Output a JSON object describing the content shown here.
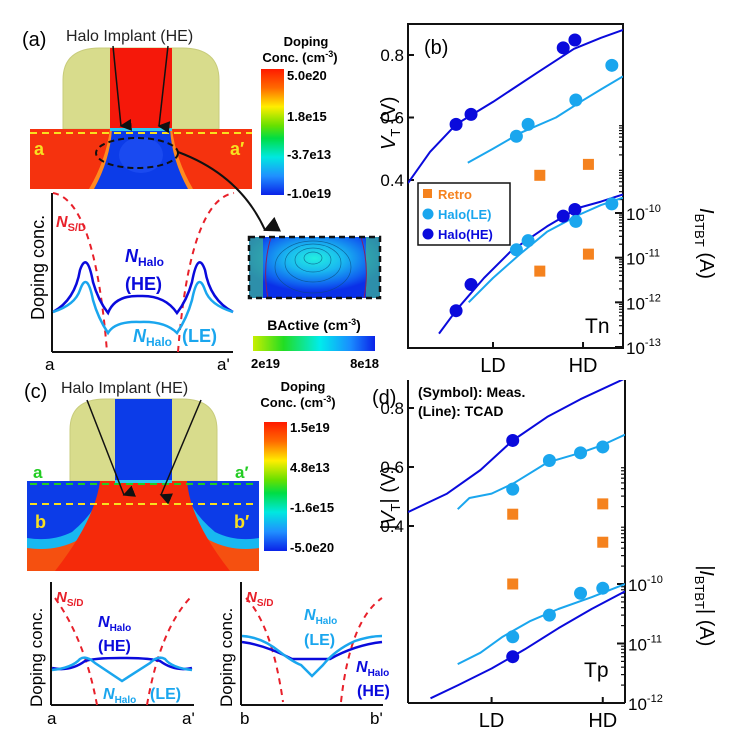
{
  "colors": {
    "he": "#0a0adc",
    "le": "#1aa6ee",
    "retro": "#f5821e",
    "sd": "#e8202a",
    "spacer": "#d8dc8c",
    "ntype_red": "#f52a10",
    "ptype_blue": "#0c3ce8",
    "cut_yellow": "#f8e020",
    "cut_green": "#22cc22"
  },
  "panel_a": {
    "tag": "(a)",
    "implant_label": "Halo Implant (HE)",
    "cut_left": "a",
    "cut_right": "a′",
    "colorbar": {
      "title_line1": "Doping",
      "title_line2": "Conc. (cm",
      "title_sup": "-3",
      "title_end": ")",
      "ticks": [
        "5.0e20",
        "1.8e15",
        "-3.7e13",
        "-1.0e19"
      ]
    },
    "inset_colorbar": {
      "title": "BActive (cm",
      "title_sup": "-3",
      "title_end": ")",
      "left": "2e19",
      "right": "8e18"
    },
    "profile": {
      "ylabel": "Doping conc.",
      "xleft": "a",
      "xright": "a'",
      "nsd": "N",
      "nsd_sub": "S/D",
      "he_label": "N",
      "he_sub": "Halo",
      "he_tag": "(HE)",
      "le_label": "N",
      "le_sub": "Halo",
      "le_tag": "(LE)"
    }
  },
  "panel_c": {
    "tag": "(c)",
    "implant_label": "Halo Implant (HE)",
    "cut_a_left": "a",
    "cut_a_right": "a′",
    "cut_b_left": "b",
    "cut_b_right": "b′",
    "colorbar": {
      "title_line1": "Doping",
      "title_line2": "Conc. (cm",
      "title_sup": "-3",
      "title_end": ")",
      "ticks": [
        "1.5e19",
        "4.8e13",
        "-1.6e15",
        "-5.0e20"
      ]
    },
    "profile_a": {
      "ylabel": "Doping conc.",
      "xleft": "a",
      "xright": "a'",
      "nsd": "N",
      "nsd_sub": "S/D",
      "he_label": "N",
      "he_sub": "Halo",
      "he_tag": "(HE)",
      "le_label": "N",
      "le_sub": "Halo",
      "le_tag": "(LE)"
    },
    "profile_b": {
      "ylabel": "Doping conc.",
      "xleft": "b",
      "xright": "b'",
      "nsd": "N",
      "nsd_sub": "S/D",
      "he_label": "N",
      "he_sub": "Halo",
      "he_tag": "(HE)",
      "le_label": "N",
      "le_sub": "Halo",
      "le_tag": "(LE)"
    }
  },
  "chart_data": [
    {
      "id": "b",
      "type": "scatter",
      "title": "(b)",
      "annotation": "Tn",
      "xlabel": "",
      "x_ticks": [
        {
          "label": "LD",
          "value": 1
        },
        {
          "label": "HD",
          "value": 2
        }
      ],
      "xlim": [
        0.056,
        2.444
      ],
      "ylabel_left": "V_T (V)",
      "ylabel_left_main": "V",
      "ylabel_left_sub": "T",
      "ylabel_left_unit": " (V)",
      "ylim_left": [
        0.3,
        0.9
      ],
      "yticks_left": [
        0.4,
        0.6,
        0.8
      ],
      "ylabel_right_main": "I",
      "ylabel_right_sub": "BTBT",
      "ylabel_right_unit": " (A)",
      "ylim_right_log": [
        -13,
        -9.2
      ],
      "yticks_right": [
        {
          "exp": -10
        },
        {
          "exp": -11
        },
        {
          "exp": -12
        },
        {
          "exp": -13
        }
      ],
      "legend": {
        "position": "middle-left",
        "entries": [
          {
            "name": "Retro",
            "marker": "square",
            "color_key": "retro"
          },
          {
            "name": "Halo(LE)",
            "marker": "circle",
            "color_key": "le"
          },
          {
            "name": "Halo(HE)",
            "marker": "circle",
            "color_key": "he"
          }
        ]
      },
      "vt_points": {
        "Halo(HE)": [
          [
            0.59,
            0.578
          ],
          [
            0.756,
            0.61
          ],
          [
            1.78,
            0.823
          ],
          [
            1.91,
            0.848
          ]
        ],
        "Halo(LE)": [
          [
            1.26,
            0.54
          ],
          [
            1.39,
            0.578
          ],
          [
            1.92,
            0.656
          ],
          [
            2.32,
            0.767
          ]
        ],
        "Retro": [
          [
            1.52,
            0.415
          ],
          [
            2.06,
            0.45
          ]
        ]
      },
      "vt_lines": {
        "Halo(HE)": [
          [
            0.056,
            0.39
          ],
          [
            0.3,
            0.49
          ],
          [
            0.59,
            0.578
          ],
          [
            1.0,
            0.65
          ],
          [
            1.5,
            0.745
          ],
          [
            1.9,
            0.82
          ],
          [
            2.2,
            0.855
          ],
          [
            2.444,
            0.88
          ]
        ],
        "Halo(LE)": [
          [
            0.72,
            0.455
          ],
          [
            1.0,
            0.5
          ],
          [
            1.3,
            0.55
          ],
          [
            1.7,
            0.6
          ],
          [
            2.0,
            0.655
          ],
          [
            2.2,
            0.69
          ],
          [
            2.444,
            0.732
          ]
        ]
      },
      "ibtbt_points": {
        "Halo(HE)": [
          [
            0.59,
            6.5e-13
          ],
          [
            0.756,
            2.5e-12
          ],
          [
            1.78,
            8.5e-11
          ],
          [
            1.91,
            1.2e-10
          ]
        ],
        "Halo(LE)": [
          [
            1.26,
            1.5e-11
          ],
          [
            1.39,
            2.4e-11
          ],
          [
            1.92,
            6.5e-11
          ],
          [
            2.32,
            1.6e-10
          ]
        ],
        "Retro": [
          [
            1.52,
            5e-12
          ],
          [
            2.06,
            1.2e-11
          ]
        ]
      },
      "ibtbt_lines": {
        "Halo(HE)": [
          [
            0.4,
            2e-13
          ],
          [
            0.6,
            7e-13
          ],
          [
            0.9,
            3.5e-12
          ],
          [
            1.2,
            1.4e-11
          ],
          [
            1.6,
            5e-11
          ],
          [
            1.95,
            1.3e-10
          ],
          [
            2.2,
            1.8e-10
          ],
          [
            2.444,
            2.6e-10
          ]
        ],
        "Halo(LE)": [
          [
            0.73,
            1e-12
          ],
          [
            1.0,
            3.5e-12
          ],
          [
            1.3,
            1.2e-11
          ],
          [
            1.6,
            3.8e-11
          ],
          [
            1.95,
            9e-11
          ],
          [
            2.2,
            1.5e-10
          ],
          [
            2.444,
            2.2e-10
          ]
        ]
      }
    },
    {
      "id": "d",
      "type": "scatter",
      "title": "(d)",
      "annotation": "Tp",
      "note_line1": "(Symbol): Meas.",
      "note_line2": "(Line): TCAD",
      "x_ticks": [
        {
          "label": "LD",
          "value": 1
        },
        {
          "label": "HD",
          "value": 2
        }
      ],
      "xlim": [
        0.248,
        2.2
      ],
      "ylabel_left_main": "|V",
      "ylabel_left_sub": "T",
      "ylabel_left_unit": "| (V)",
      "ylim_left": [
        0.15,
        0.9
      ],
      "yticks_left": [
        0.4,
        0.6,
        0.8
      ],
      "ylabel_right_main": "|I",
      "ylabel_right_sub": "BTBT",
      "ylabel_right_unit": "| (A)",
      "ylim_right_log": [
        -12,
        -9.2
      ],
      "yticks_right": [
        {
          "exp": -10
        },
        {
          "exp": -11
        },
        {
          "exp": -12
        }
      ],
      "vt_points": {
        "Halo(HE)": [
          [
            1.19,
            0.69
          ]
        ],
        "Halo(LE)": [
          [
            1.19,
            0.525
          ],
          [
            1.52,
            0.622
          ],
          [
            1.8,
            0.648
          ],
          [
            2.0,
            0.668
          ]
        ],
        "Retro": [
          [
            1.19,
            0.44
          ],
          [
            2.0,
            0.475
          ],
          [
            2.0,
            0.345
          ]
        ]
      },
      "vt_lines": {
        "Halo(HE)": [
          [
            0.248,
            0.447
          ],
          [
            0.6,
            0.51
          ],
          [
            0.9,
            0.59
          ],
          [
            1.19,
            0.69
          ],
          [
            1.5,
            0.77
          ],
          [
            1.8,
            0.83
          ],
          [
            2.2,
            0.9
          ]
        ],
        "Halo(LE)": [
          [
            0.695,
            0.457
          ],
          [
            0.8,
            0.495
          ],
          [
            1.0,
            0.51
          ],
          [
            1.2,
            0.545
          ],
          [
            1.5,
            0.615
          ],
          [
            1.8,
            0.648
          ],
          [
            2.0,
            0.675
          ],
          [
            2.2,
            0.71
          ]
        ]
      },
      "ibtbt_points": {
        "Halo(HE)": [
          [
            1.19,
            6e-12
          ]
        ],
        "Halo(LE)": [
          [
            1.19,
            1.3e-11
          ],
          [
            1.52,
            3e-11
          ],
          [
            1.8,
            7e-11
          ],
          [
            2.0,
            8.5e-11
          ]
        ],
        "Retro": [
          [
            1.19,
            1e-10
          ]
        ]
      },
      "ibtbt_lines": {
        "Halo(HE)": [
          [
            0.45,
            1.2e-12
          ],
          [
            0.7,
            2e-12
          ],
          [
            1.0,
            3.8e-12
          ],
          [
            1.3,
            8e-12
          ],
          [
            1.6,
            1.8e-11
          ],
          [
            1.9,
            3.8e-11
          ],
          [
            2.2,
            7.5e-11
          ]
        ],
        "Halo(LE)": [
          [
            0.695,
            4.5e-12
          ],
          [
            0.9,
            7e-12
          ],
          [
            1.1,
            1.3e-11
          ],
          [
            1.35,
            2.4e-11
          ],
          [
            1.6,
            3.8e-11
          ],
          [
            1.9,
            6e-11
          ],
          [
            2.2,
            1e-10
          ]
        ]
      }
    }
  ]
}
